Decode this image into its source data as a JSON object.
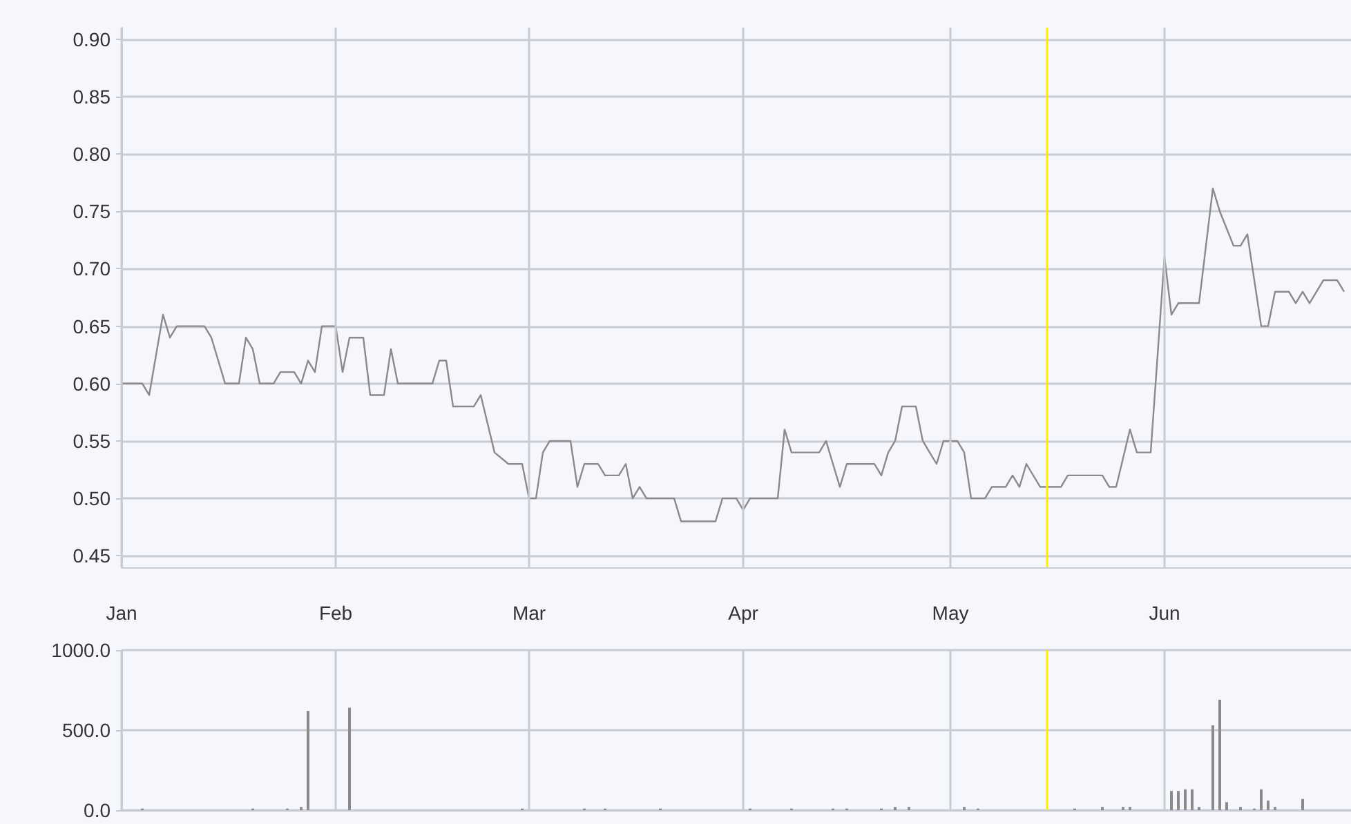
{
  "chart_data": [
    {
      "type": "line",
      "x": [
        "--01-01",
        "--01-04",
        "--01-05",
        "--01-07",
        "--01-08",
        "--01-09",
        "--01-13",
        "--01-14",
        "--01-16",
        "--01-18",
        "--01-19",
        "--01-20",
        "--01-21",
        "--01-23",
        "--01-24",
        "--01-26",
        "--01-27",
        "--01-28",
        "--01-29",
        "--01-30",
        "--02-01",
        "--02-02",
        "--02-03",
        "--02-05",
        "--02-06",
        "--02-08",
        "--02-09",
        "--02-10",
        "--02-15",
        "--02-16",
        "--02-17",
        "--02-18",
        "--02-21",
        "--02-22",
        "--02-24",
        "--02-26",
        "--02-28",
        "--03-01",
        "--03-02",
        "--03-03",
        "--03-04",
        "--03-07",
        "--03-08",
        "--03-09",
        "--03-11",
        "--03-12",
        "--03-14",
        "--03-15",
        "--03-16",
        "--03-17",
        "--03-18",
        "--03-22",
        "--03-23",
        "--03-28",
        "--03-29",
        "--03-31",
        "--04-01",
        "--04-02",
        "--04-06",
        "--04-07",
        "--04-08",
        "--04-12",
        "--04-13",
        "--04-15",
        "--04-16",
        "--04-20",
        "--04-21",
        "--04-22",
        "--04-23",
        "--04-24",
        "--04-26",
        "--04-27",
        "--04-28",
        "--04-29",
        "--04-30",
        "--05-02",
        "--05-03",
        "--05-04",
        "--05-06",
        "--05-07",
        "--05-09",
        "--05-10",
        "--05-11",
        "--05-12",
        "--05-14",
        "--05-17",
        "--05-18",
        "--05-23",
        "--05-24",
        "--05-25",
        "--05-27",
        "--05-28",
        "--05-30",
        "--06-01",
        "--06-02",
        "--06-03",
        "--06-06",
        "--06-08",
        "--06-09",
        "--06-11",
        "--06-12",
        "--06-13",
        "--06-15",
        "--06-16",
        "--06-17",
        "--06-19",
        "--06-20",
        "--06-21",
        "--06-22",
        "--06-24",
        "--06-26",
        "--06-27"
      ],
      "series": [
        {
          "color": "#8a8a8a",
          "values": [
            0.6,
            0.6,
            0.59,
            0.66,
            0.64,
            0.65,
            0.65,
            0.64,
            0.6,
            0.6,
            0.64,
            0.63,
            0.6,
            0.6,
            0.61,
            0.61,
            0.6,
            0.62,
            0.61,
            0.65,
            0.65,
            0.61,
            0.64,
            0.64,
            0.59,
            0.59,
            0.63,
            0.6,
            0.6,
            0.62,
            0.62,
            0.58,
            0.58,
            0.59,
            0.54,
            0.53,
            0.53,
            0.5,
            0.5,
            0.54,
            0.55,
            0.55,
            0.51,
            0.53,
            0.53,
            0.52,
            0.52,
            0.53,
            0.5,
            0.51,
            0.5,
            0.5,
            0.48,
            0.48,
            0.5,
            0.5,
            0.49,
            0.5,
            0.5,
            0.56,
            0.54,
            0.54,
            0.55,
            0.51,
            0.53,
            0.53,
            0.52,
            0.54,
            0.55,
            0.58,
            0.58,
            0.55,
            0.54,
            0.53,
            0.55,
            0.55,
            0.54,
            0.5,
            0.5,
            0.51,
            0.51,
            0.52,
            0.51,
            0.53,
            0.51,
            0.51,
            0.52,
            0.52,
            0.51,
            0.51,
            0.56,
            0.54,
            0.54,
            0.71,
            0.66,
            0.67,
            0.67,
            0.77,
            0.75,
            0.72,
            0.72,
            0.73,
            0.65,
            0.65,
            0.68,
            0.68,
            0.67,
            0.68,
            0.67,
            0.69,
            0.69,
            0.68
          ]
        }
      ],
      "xlim": [
        "--01-01",
        "--06-28"
      ],
      "xticks": [
        {
          "value": "--01-01",
          "label": "Jan"
        },
        {
          "value": "--02-01",
          "label": "Feb"
        },
        {
          "value": "--03-01",
          "label": "Mar"
        },
        {
          "value": "--04-01",
          "label": "Apr"
        },
        {
          "value": "--05-01",
          "label": "May"
        },
        {
          "value": "--06-01",
          "label": "Jun"
        }
      ],
      "ylim": [
        0.44,
        0.91
      ],
      "yticks": [
        {
          "value": 0.45,
          "label": "0.45"
        },
        {
          "value": 0.5,
          "label": "0.50"
        },
        {
          "value": 0.55,
          "label": "0.55"
        },
        {
          "value": 0.6,
          "label": "0.60"
        },
        {
          "value": 0.65,
          "label": "0.65"
        },
        {
          "value": 0.7,
          "label": "0.70"
        },
        {
          "value": 0.75,
          "label": "0.75"
        },
        {
          "value": 0.8,
          "label": "0.80"
        },
        {
          "value": 0.85,
          "label": "0.85"
        },
        {
          "value": 0.9,
          "label": "0.90"
        }
      ],
      "grid": true,
      "ref_lines": [
        {
          "axis": "x",
          "value": "--05-15",
          "color": "#ffee00"
        }
      ]
    },
    {
      "type": "bar",
      "x": [
        "--01-04",
        "--01-20",
        "--01-25",
        "--01-27",
        "--01-28",
        "--02-03",
        "--02-28",
        "--03-09",
        "--03-12",
        "--03-20",
        "--04-02",
        "--04-08",
        "--04-14",
        "--04-16",
        "--04-21",
        "--04-23",
        "--04-25",
        "--05-03",
        "--05-05",
        "--05-19",
        "--05-23",
        "--05-26",
        "--05-27",
        "--06-02",
        "--06-03",
        "--06-04",
        "--06-05",
        "--06-06",
        "--06-08",
        "--06-09",
        "--06-10",
        "--06-12",
        "--06-14",
        "--06-15",
        "--06-16",
        "--06-17",
        "--06-21"
      ],
      "series": [
        {
          "color": "#8a8a8a",
          "values": [
            10,
            10,
            10,
            20,
            620,
            640,
            10,
            10,
            10,
            10,
            10,
            10,
            10,
            10,
            10,
            20,
            20,
            20,
            10,
            10,
            20,
            20,
            20,
            120,
            120,
            130,
            130,
            20,
            530,
            690,
            50,
            20,
            10,
            130,
            60,
            20,
            70
          ]
        }
      ],
      "xlim": [
        "--01-01",
        "--06-28"
      ],
      "xticks": [
        {
          "value": "--01-01",
          "label": null
        },
        {
          "value": "--02-01",
          "label": null
        },
        {
          "value": "--03-01",
          "label": null
        },
        {
          "value": "--04-01",
          "label": null
        },
        {
          "value": "--05-01",
          "label": null
        },
        {
          "value": "--06-01",
          "label": null
        }
      ],
      "ylim": [
        0,
        1000
      ],
      "yticks": [
        {
          "value": 0,
          "label": "0.0"
        },
        {
          "value": 500,
          "label": "500.0"
        },
        {
          "value": 1000,
          "label": "1000.0"
        }
      ],
      "tick_labels": "y",
      "grid": true,
      "ref_lines": [
        {
          "axis": "x",
          "value": "--05-15",
          "color": "#ffee00"
        }
      ]
    }
  ]
}
